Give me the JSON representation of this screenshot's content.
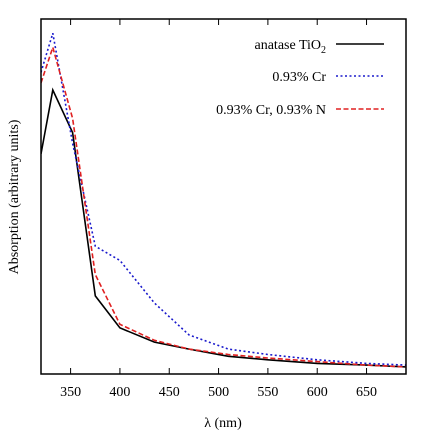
{
  "chart_data": {
    "type": "line",
    "xlabel": "λ (nm)",
    "ylabel": "Absorption (arbitrary units)",
    "xlim": [
      320,
      690
    ],
    "ylim": [
      0,
      100
    ],
    "x_ticks": [
      350,
      400,
      450,
      500,
      550,
      600,
      650
    ],
    "y_ticks": [],
    "grid": false,
    "legend_position": "top-right",
    "series": [
      {
        "name": "anatase TiO",
        "name_subscript": "2",
        "color": "#000000",
        "dash": "solid",
        "x": [
          320,
          332,
          352,
          375,
          400,
          435,
          470,
          510,
          550,
          600,
          650,
          690
        ],
        "y": [
          62,
          80,
          68,
          22,
          13,
          9,
          7,
          5,
          4,
          3,
          2.5,
          2
        ]
      },
      {
        "name": "0.93% Cr",
        "color": "#1a1acc",
        "dash": "dotted",
        "x": [
          320,
          332,
          352,
          375,
          400,
          435,
          470,
          510,
          550,
          600,
          650,
          690
        ],
        "y": [
          85,
          96,
          65,
          36,
          32,
          20,
          11,
          7,
          5.5,
          4,
          3,
          2.5
        ]
      },
      {
        "name": "0.93% Cr, 0.93% N",
        "color": "#e02020",
        "dash": "dashed",
        "x": [
          320,
          332,
          352,
          375,
          400,
          435,
          470,
          510,
          550,
          600,
          650,
          690
        ],
        "y": [
          82,
          92,
          72,
          28,
          14,
          9.5,
          7,
          5.5,
          4.5,
          3.5,
          2.5,
          2
        ]
      }
    ]
  }
}
